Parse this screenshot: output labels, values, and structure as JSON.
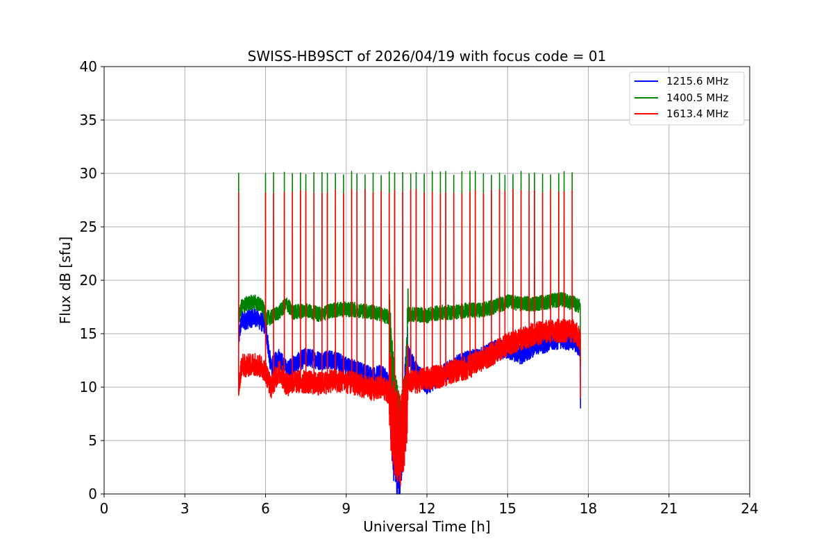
{
  "chart_data": {
    "type": "line",
    "title": "SWISS-HB9SCT of 2026/04/19 with focus code = 01",
    "xlabel": "Universal Time [h]",
    "ylabel": "Flux dB [sfu]",
    "xlim": [
      0,
      24
    ],
    "ylim": [
      0,
      40
    ],
    "xticks": [
      0,
      3,
      6,
      9,
      12,
      15,
      18,
      21,
      24
    ],
    "yticks": [
      0,
      5,
      10,
      15,
      20,
      25,
      30,
      35,
      40
    ],
    "grid": true,
    "legend_position": "top-right",
    "series": [
      {
        "name": "1215.6 MHz",
        "color": "#0000ff",
        "x": [
          5.0,
          5.1,
          5.3,
          5.6,
          5.9,
          6.0,
          6.2,
          6.5,
          6.8,
          7.0,
          7.5,
          8.0,
          8.5,
          9.0,
          9.5,
          10.0,
          10.3,
          10.6,
          10.8,
          11.0,
          11.2,
          11.3,
          11.6,
          12.0,
          12.5,
          13.0,
          13.5,
          14.0,
          14.5,
          15.0,
          15.5,
          16.0,
          16.5,
          17.0,
          17.5,
          17.7
        ],
        "values": [
          14.5,
          16.2,
          16.3,
          16.6,
          16.0,
          15.8,
          11.8,
          12.8,
          11.5,
          12.0,
          12.8,
          12.5,
          12.6,
          12.0,
          11.5,
          11.0,
          11.2,
          10.5,
          3.0,
          2.0,
          10.0,
          13.0,
          11.5,
          10.2,
          11.0,
          12.0,
          12.5,
          12.8,
          13.5,
          13.5,
          13.0,
          13.8,
          14.2,
          14.5,
          14.2,
          13.5
        ]
      },
      {
        "name": "1400.5 MHz",
        "color": "#008000",
        "x": [
          5.0,
          5.1,
          5.3,
          5.6,
          5.9,
          6.0,
          6.2,
          6.5,
          6.8,
          7.0,
          7.5,
          8.0,
          8.5,
          9.0,
          9.5,
          10.0,
          10.3,
          10.6,
          10.8,
          11.0,
          11.2,
          11.3,
          11.6,
          12.0,
          12.5,
          13.0,
          13.5,
          14.0,
          14.5,
          15.0,
          15.5,
          16.0,
          16.5,
          17.0,
          17.5,
          17.7
        ],
        "values": [
          16.5,
          17.5,
          17.8,
          18.0,
          17.5,
          16.5,
          16.5,
          17.0,
          17.8,
          17.0,
          17.2,
          16.8,
          17.2,
          17.3,
          17.2,
          17.0,
          16.8,
          16.5,
          9.0,
          6.5,
          8.5,
          16.8,
          16.8,
          16.7,
          17.0,
          17.0,
          17.2,
          17.2,
          17.5,
          18.0,
          17.8,
          17.8,
          18.0,
          18.2,
          17.8,
          17.5
        ]
      },
      {
        "name": "1613.4 MHz",
        "color": "#ff0000",
        "x": [
          5.0,
          5.1,
          5.3,
          5.6,
          5.9,
          6.0,
          6.2,
          6.5,
          6.8,
          7.0,
          7.5,
          8.0,
          8.5,
          9.0,
          9.5,
          10.0,
          10.3,
          10.6,
          10.8,
          11.0,
          11.2,
          11.3,
          11.6,
          12.0,
          12.5,
          13.0,
          13.5,
          14.0,
          14.5,
          15.0,
          15.5,
          16.0,
          16.5,
          17.0,
          17.5,
          17.7
        ],
        "values": [
          9.5,
          12.0,
          12.0,
          12.2,
          11.8,
          11.5,
          10.0,
          11.5,
          10.2,
          10.5,
          10.5,
          10.3,
          10.6,
          10.5,
          10.2,
          9.8,
          10.0,
          9.5,
          6.0,
          5.0,
          7.0,
          10.5,
          10.5,
          10.8,
          11.0,
          11.5,
          11.8,
          12.5,
          13.2,
          14.0,
          14.5,
          15.0,
          15.2,
          15.3,
          15.2,
          14.5
        ]
      }
    ],
    "spike_times": [
      5.0,
      6.0,
      6.3,
      6.7,
      7.0,
      7.3,
      7.5,
      7.8,
      8.1,
      8.3,
      8.6,
      8.9,
      9.2,
      9.4,
      9.7,
      10.0,
      10.3,
      10.6,
      10.8,
      11.1,
      11.4,
      11.6,
      11.9,
      12.2,
      12.5,
      12.7,
      13.0,
      13.3,
      13.6,
      13.8,
      14.1,
      14.4,
      14.7,
      14.9,
      15.2,
      15.5,
      15.8,
      16.0,
      16.3,
      16.6,
      16.9,
      17.1,
      17.4
    ],
    "spike_peaks": {
      "1400.5 MHz": 30.0,
      "1613.4 MHz": 28.3
    }
  }
}
